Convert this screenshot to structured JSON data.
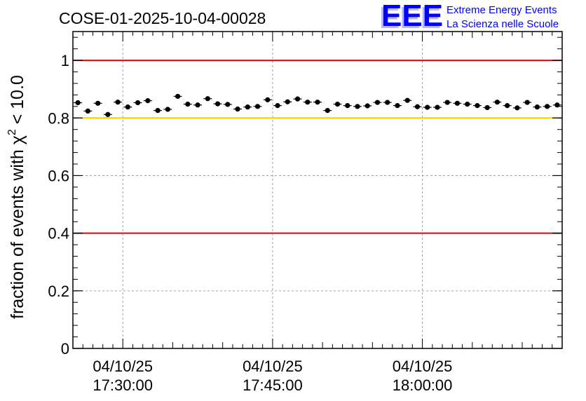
{
  "header": {
    "run_title": "COSE-01-2025-10-04-00028",
    "logo_text": "EEE",
    "logo_line1": "Extreme Energy Events",
    "logo_line2": "La Scienza nelle Scuole"
  },
  "colors": {
    "limit_line": "#e8000b",
    "warning_line": "#ffcc00",
    "logo_blue": "#0000ff",
    "grid": "#a0a0a0",
    "marker": "#000000"
  },
  "chart_data": {
    "type": "scatter",
    "title": "COSE-01-2025-10-04-00028",
    "xlabel": "",
    "ylabel_prefix": "fraction of events with ",
    "ylabel_chi": "χ",
    "ylabel_sup": "2",
    "ylabel_suffix": " < 10.0",
    "x_unit": "minutes since 17:25:00",
    "xlim": [
      0,
      49
    ],
    "ylim": [
      0,
      1.1
    ],
    "yticks": [
      0,
      0.2,
      0.4,
      0.6,
      0.8,
      1
    ],
    "ytick_labels": [
      "0",
      "0.2",
      "0.4",
      "0.6",
      "0.8",
      "1"
    ],
    "xticks": [
      {
        "x": 5,
        "date": "04/10/25",
        "time": "17:30:00"
      },
      {
        "x": 20,
        "date": "04/10/25",
        "time": "17:45:00"
      },
      {
        "x": 35,
        "date": "04/10/25",
        "time": "18:00:00"
      }
    ],
    "grid": true,
    "reference_lines": [
      {
        "y": 1.0,
        "color": "#e8000b"
      },
      {
        "y": 0.8,
        "color": "#ffcc00"
      },
      {
        "y": 0.4,
        "color": "#e8000b"
      }
    ],
    "x_error": 0.42,
    "series": [
      {
        "name": "fraction",
        "x": [
          0.5,
          1.5,
          2.5,
          3.5,
          4.5,
          5.5,
          6.5,
          7.5,
          8.5,
          9.5,
          10.5,
          11.5,
          12.5,
          13.5,
          14.5,
          15.5,
          16.5,
          17.5,
          18.5,
          19.5,
          20.5,
          21.5,
          22.5,
          23.5,
          24.5,
          25.5,
          26.5,
          27.5,
          28.5,
          29.5,
          30.5,
          31.5,
          32.5,
          33.5,
          34.5,
          35.5,
          36.5,
          37.5,
          38.5,
          39.5,
          40.5,
          41.5,
          42.5,
          43.5,
          44.5,
          45.5,
          46.5,
          47.5,
          48.5
        ],
        "y": [
          0.853,
          0.824,
          0.851,
          0.812,
          0.855,
          0.838,
          0.853,
          0.86,
          0.826,
          0.83,
          0.875,
          0.848,
          0.845,
          0.867,
          0.849,
          0.847,
          0.831,
          0.838,
          0.84,
          0.863,
          0.843,
          0.856,
          0.866,
          0.855,
          0.855,
          0.826,
          0.848,
          0.843,
          0.84,
          0.842,
          0.854,
          0.854,
          0.843,
          0.861,
          0.839,
          0.837,
          0.837,
          0.854,
          0.851,
          0.848,
          0.843,
          0.836,
          0.855,
          0.843,
          0.835,
          0.854,
          0.838,
          0.84,
          0.845
        ],
        "y_err": [
          0.008,
          0.008,
          0.008,
          0.009,
          0.008,
          0.008,
          0.008,
          0.008,
          0.008,
          0.008,
          0.007,
          0.008,
          0.008,
          0.008,
          0.008,
          0.008,
          0.008,
          0.008,
          0.008,
          0.008,
          0.008,
          0.008,
          0.007,
          0.008,
          0.008,
          0.008,
          0.008,
          0.008,
          0.008,
          0.008,
          0.008,
          0.008,
          0.008,
          0.008,
          0.008,
          0.008,
          0.008,
          0.008,
          0.008,
          0.008,
          0.008,
          0.008,
          0.008,
          0.008,
          0.008,
          0.008,
          0.008,
          0.008,
          0.008
        ]
      }
    ]
  }
}
